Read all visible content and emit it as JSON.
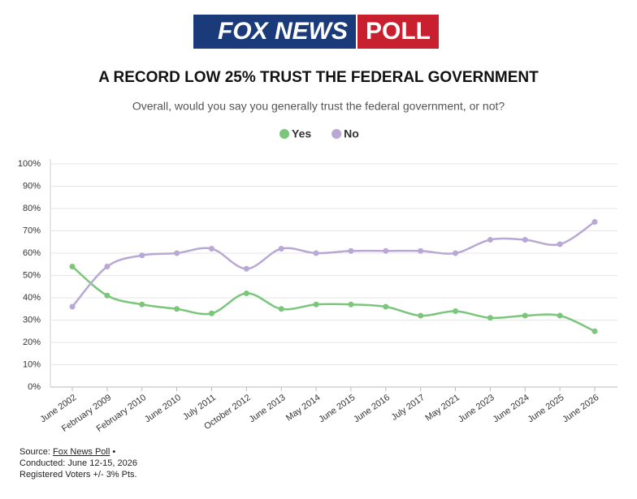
{
  "logo": {
    "left": "FOX NEWS",
    "right": "POLL"
  },
  "chart_data": {
    "type": "line",
    "title": "A RECORD LOW 25% TRUST THE FEDERAL GOVERNMENT",
    "subtitle": "Overall, would you say you generally trust the federal government, or not?",
    "categories": [
      "June 2002",
      "February 2009",
      "February 2010",
      "June 2010",
      "July 2011",
      "October 2012",
      "June 2013",
      "May 2014",
      "June 2015",
      "June 2016",
      "July 2017",
      "May 2021",
      "June 2023",
      "June 2024",
      "June 2025",
      "June 2026"
    ],
    "series": [
      {
        "name": "Yes",
        "color": "#7cc67c",
        "values": [
          54,
          41,
          37,
          35,
          33,
          42,
          35,
          37,
          37,
          36,
          32,
          34,
          31,
          32,
          32,
          25
        ]
      },
      {
        "name": "No",
        "color": "#b8a8d3",
        "values": [
          36,
          54,
          59,
          60,
          62,
          53,
          62,
          60,
          61,
          61,
          61,
          60,
          66,
          66,
          64,
          74
        ]
      }
    ],
    "ylim": [
      0,
      100
    ],
    "yticks": [
      {
        "value": 0,
        "label": "0%"
      },
      {
        "value": 10,
        "label": "10%"
      },
      {
        "value": 20,
        "label": "20%"
      },
      {
        "value": 30,
        "label": "30%"
      },
      {
        "value": 40,
        "label": "40%"
      },
      {
        "value": 50,
        "label": "50%"
      },
      {
        "value": 60,
        "label": "60%"
      },
      {
        "value": 70,
        "label": "70%"
      },
      {
        "value": 80,
        "label": "80%"
      },
      {
        "value": 90,
        "label": "90%"
      },
      {
        "value": 100,
        "label": "100%"
      }
    ],
    "legend": "top",
    "source": {
      "prefix": "Source:",
      "link": "Fox News Poll",
      "suffix": "•",
      "conducted": "Conducted: June 12-15, 2026",
      "note": "Registered Voters +/- 3% Pts."
    }
  }
}
